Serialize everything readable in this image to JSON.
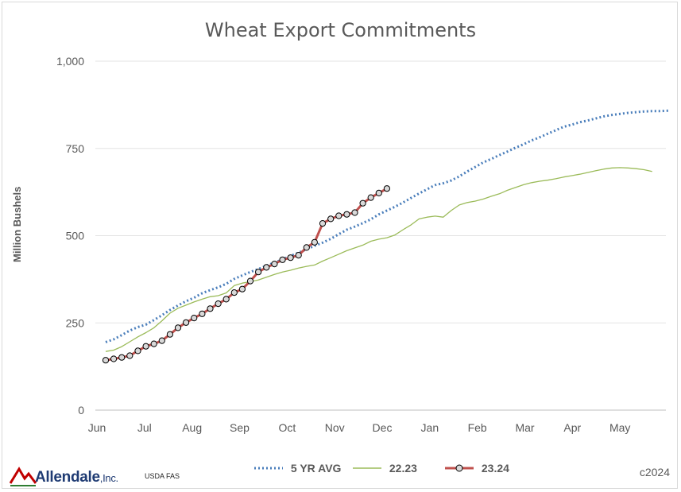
{
  "footer": {
    "brand_name": "Allendale",
    "brand_suffix": ",Inc.",
    "source": "USDA FAS",
    "copyright": "c2024"
  },
  "chart_data": {
    "type": "line",
    "title": "Wheat Export Commitments",
    "xlabel": "",
    "ylabel": "Million Bushels",
    "ylim": [
      0,
      1000
    ],
    "yticks": [
      0,
      250,
      500,
      750,
      1000
    ],
    "ytick_labels": [
      "0",
      "250",
      "500",
      "750",
      "1,000"
    ],
    "month_labels": [
      "Jun",
      "Jul",
      "Aug",
      "Sep",
      "Oct",
      "Nov",
      "Dec",
      "Jan",
      "Feb",
      "Mar",
      "Apr",
      "May"
    ],
    "x_unit": "week of marketing year (Jun–May)",
    "grid": true,
    "legend_position": "bottom",
    "series": [
      {
        "name": "5 YR AVG",
        "color": "#4a7ebb",
        "style": "dotted",
        "values": [
          195,
          203,
          215,
          228,
          238,
          245,
          258,
          272,
          287,
          300,
          312,
          322,
          335,
          344,
          352,
          362,
          376,
          386,
          396,
          404,
          414,
          423,
          432,
          442,
          451,
          461,
          471,
          480,
          491,
          504,
          517,
          526,
          536,
          547,
          561,
          572,
          583,
          595,
          608,
          621,
          633,
          645,
          650,
          658,
          670,
          684,
          697,
          710,
          720,
          731,
          741,
          752,
          762,
          773,
          782,
          792,
          802,
          812,
          818,
          825,
          830,
          836,
          842,
          846,
          849,
          852,
          854,
          856,
          857,
          857,
          858
        ]
      },
      {
        "name": "22.23",
        "color": "#9bbb59",
        "style": "solid",
        "values": [
          168,
          172,
          182,
          196,
          210,
          222,
          236,
          256,
          278,
          292,
          301,
          310,
          318,
          325,
          328,
          336,
          357,
          364,
          368,
          373,
          381,
          389,
          396,
          401,
          407,
          412,
          416,
          427,
          437,
          447,
          457,
          465,
          473,
          484,
          490,
          494,
          502,
          517,
          531,
          548,
          553,
          556,
          553,
          572,
          588,
          595,
          599,
          605,
          613,
          620,
          630,
          638,
          646,
          652,
          656,
          659,
          663,
          668,
          672,
          676,
          681,
          686,
          691,
          694,
          695,
          694,
          692,
          689,
          684
        ]
      },
      {
        "name": "23.24",
        "color": "#c0504d",
        "style": "solid-markers",
        "values": [
          143,
          147,
          151,
          156,
          170,
          183,
          190,
          199,
          217,
          236,
          251,
          264,
          276,
          291,
          305,
          318,
          337,
          347,
          370,
          396,
          409,
          419,
          431,
          437,
          444,
          466,
          481,
          535,
          548,
          557,
          561,
          566,
          593,
          609,
          622,
          635
        ]
      }
    ]
  }
}
